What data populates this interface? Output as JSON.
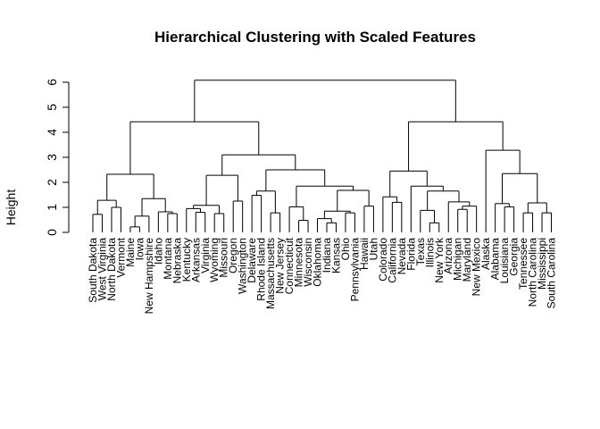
{
  "chart_data": {
    "type": "dendrogram",
    "title": "Hierarchical Clustering with Scaled Features",
    "xlabel": "",
    "ylabel": "Height",
    "ylim": [
      0,
      6.2
    ],
    "yticks": [
      0,
      1,
      2,
      3,
      4,
      5,
      6
    ],
    "leaves": [
      "South Dakota",
      "West Virginia",
      "North Dakota",
      "Vermont",
      "Maine",
      "Iowa",
      "New Hampshire",
      "Idaho",
      "Montana",
      "Nebraska",
      "Kentucky",
      "Arkansas",
      "Virginia",
      "Wyoming",
      "Missouri",
      "Oregon",
      "Washington",
      "Delaware",
      "Rhode Island",
      "Massachusetts",
      "New Jersey",
      "Connecticut",
      "Minnesota",
      "Wisconsin",
      "Oklahoma",
      "Indiana",
      "Kansas",
      "Ohio",
      "Pennsylvania",
      "Hawaii",
      "Utah",
      "Colorado",
      "California",
      "Nevada",
      "Florida",
      "Texas",
      "Illinois",
      "New York",
      "Arizona",
      "Michigan",
      "Maryland",
      "New Mexico",
      "Alaska",
      "Alabama",
      "Louisiana",
      "Georgia",
      "Tennessee",
      "North Carolina",
      "Mississippi",
      "South Carolina"
    ],
    "tree": {
      "h": 6.08,
      "c": [
        {
          "h": 4.42,
          "c": [
            {
              "h": 2.32,
              "c": [
                {
                  "h": 1.28,
                  "c": [
                    {
                      "h": 0.72,
                      "c": [
                        {
                          "l": 0
                        },
                        {
                          "l": 1
                        }
                      ]
                    },
                    {
                      "h": 1.0,
                      "c": [
                        {
                          "l": 2
                        },
                        {
                          "l": 3
                        }
                      ]
                    }
                  ]
                },
                {
                  "h": 1.35,
                  "c": [
                    {
                      "h": 0.65,
                      "c": [
                        {
                          "h": 0.22,
                          "c": [
                            {
                              "l": 4
                            },
                            {
                              "l": 5
                            }
                          ]
                        },
                        {
                          "l": 6
                        }
                      ]
                    },
                    {
                      "h": 0.82,
                      "c": [
                        {
                          "l": 7
                        },
                        {
                          "h": 0.75,
                          "c": [
                            {
                              "l": 8
                            },
                            {
                              "l": 9
                            }
                          ]
                        }
                      ]
                    }
                  ]
                }
              ]
            },
            {
              "h": 3.1,
              "c": [
                {
                  "h": 2.28,
                  "c": [
                    {
                      "h": 1.08,
                      "c": [
                        {
                          "h": 0.95,
                          "c": [
                            {
                              "l": 10
                            },
                            {
                              "h": 0.8,
                              "c": [
                                {
                                  "l": 11
                                },
                                {
                                  "l": 12
                                }
                              ]
                            }
                          ]
                        },
                        {
                          "h": 0.75,
                          "c": [
                            {
                              "l": 13
                            },
                            {
                              "l": 14
                            }
                          ]
                        }
                      ]
                    },
                    {
                      "h": 1.25,
                      "c": [
                        {
                          "l": 15
                        },
                        {
                          "l": 16
                        }
                      ]
                    }
                  ]
                },
                {
                  "h": 2.5,
                  "c": [
                    {
                      "h": 1.65,
                      "c": [
                        {
                          "h": 1.48,
                          "c": [
                            {
                              "l": 17
                            },
                            {
                              "l": 18
                            }
                          ]
                        },
                        {
                          "h": 0.78,
                          "c": [
                            {
                              "l": 19
                            },
                            {
                              "l": 20
                            }
                          ]
                        }
                      ]
                    },
                    {
                      "h": 1.85,
                      "c": [
                        {
                          "h": 1.02,
                          "c": [
                            {
                              "l": 21
                            },
                            {
                              "h": 0.48,
                              "c": [
                                {
                                  "l": 22
                                },
                                {
                                  "l": 23
                                }
                              ]
                            }
                          ]
                        },
                        {
                          "h": 1.68,
                          "c": [
                            {
                              "h": 0.85,
                              "c": [
                                {
                                  "h": 0.55,
                                  "c": [
                                    {
                                      "l": 24
                                    },
                                    {
                                      "h": 0.38,
                                      "c": [
                                        {
                                          "l": 25
                                        },
                                        {
                                          "l": 26
                                        }
                                      ]
                                    }
                                  ]
                                },
                                {
                                  "h": 0.78,
                                  "c": [
                                    {
                                      "l": 27
                                    },
                                    {
                                      "l": 28
                                    }
                                  ]
                                }
                              ]
                            },
                            {
                              "h": 1.05,
                              "c": [
                                {
                                  "l": 29
                                },
                                {
                                  "l": 30
                                }
                              ]
                            }
                          ]
                        }
                      ]
                    }
                  ]
                }
              ]
            }
          ]
        },
        {
          "h": 4.42,
          "c": [
            {
              "h": 2.45,
              "c": [
                {
                  "h": 1.42,
                  "c": [
                    {
                      "l": 31
                    },
                    {
                      "h": 1.2,
                      "c": [
                        {
                          "l": 32
                        },
                        {
                          "l": 33
                        }
                      ]
                    }
                  ]
                },
                {
                  "h": 1.85,
                  "c": [
                    {
                      "l": 34
                    },
                    {
                      "h": 1.65,
                      "c": [
                        {
                          "h": 0.88,
                          "c": [
                            {
                              "l": 35
                            },
                            {
                              "h": 0.38,
                              "c": [
                                {
                                  "l": 36
                                },
                                {
                                  "l": 37
                                }
                              ]
                            }
                          ]
                        },
                        {
                          "h": 1.22,
                          "c": [
                            {
                              "l": 38
                            },
                            {
                              "h": 1.05,
                              "c": [
                                {
                                  "h": 0.92,
                                  "c": [
                                    {
                                      "l": 39
                                    },
                                    {
                                      "l": 40
                                    }
                                  ]
                                },
                                {
                                  "l": 41
                                }
                              ]
                            }
                          ]
                        }
                      ]
                    }
                  ]
                }
              ]
            },
            {
              "h": 3.28,
              "c": [
                {
                  "l": 42
                },
                {
                  "h": 2.35,
                  "c": [
                    {
                      "h": 1.15,
                      "c": [
                        {
                          "l": 43
                        },
                        {
                          "h": 1.02,
                          "c": [
                            {
                              "l": 44
                            },
                            {
                              "l": 45
                            }
                          ]
                        }
                      ]
                    },
                    {
                      "h": 1.18,
                      "c": [
                        {
                          "h": 0.78,
                          "c": [
                            {
                              "l": 46
                            },
                            {
                              "l": 47
                            }
                          ]
                        },
                        {
                          "h": 0.78,
                          "c": [
                            {
                              "l": 48
                            },
                            {
                              "l": 49
                            }
                          ]
                        }
                      ]
                    }
                  ]
                }
              ]
            }
          ]
        }
      ]
    }
  }
}
